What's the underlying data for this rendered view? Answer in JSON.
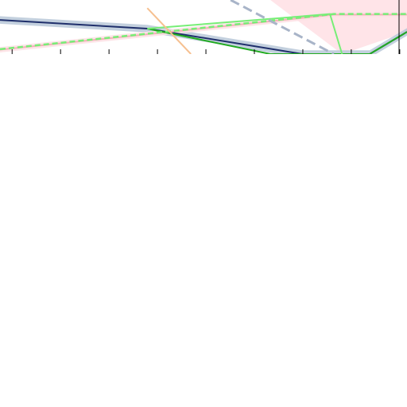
{
  "chart_data": {
    "type": "line",
    "xlim": [
      -0.25,
      8.15
    ],
    "ylim": [
      0,
      10
    ],
    "xticks": [
      0,
      1,
      2,
      3,
      4,
      5,
      6,
      7,
      8
    ],
    "areas": [
      {
        "color": "#ffe4e8",
        "x": [
          5.33,
          6.81,
          8.15
        ],
        "upper": [
          10,
          10,
          10
        ],
        "lower": [
          10,
          0,
          4.1
        ]
      }
    ],
    "series": [
      {
        "color": "#1f2f6b",
        "width": 2,
        "x": [
          -0.25,
          2.79,
          5.99,
          7.38,
          8.15
        ],
        "values": [
          6.3,
          4.7,
          0,
          0,
          4.1
        ],
        "band_color": "#b8c8d8",
        "lower": [
          5.6,
          4.0,
          -0.7,
          -0.7,
          3.4
        ],
        "upper": [
          7.0,
          5.4,
          0.7,
          0.7,
          4.8
        ]
      },
      {
        "color": "#f4b0b8",
        "width": 2,
        "x": [
          -0.25,
          6.64,
          8.15
        ],
        "values": [
          0.8,
          7.3,
          7.3
        ],
        "band_color": "#fde0e4",
        "lower": [
          0.3,
          6.8,
          6.8
        ],
        "upper": [
          1.3,
          7.8,
          7.8
        ]
      },
      {
        "color": "#22aa22",
        "width": 2,
        "x": [
          2.79,
          5.33,
          7.38,
          8.15
        ],
        "values": [
          4.7,
          0,
          0,
          4.1
        ]
      },
      {
        "color": "#77ee77",
        "width": 2,
        "x": [
          2.79,
          6.56,
          6.81
        ],
        "values": [
          4.7,
          7.4,
          0
        ]
      },
      {
        "color": "#77ee77",
        "width": 2.5,
        "dash": "7 4",
        "x": [
          -0.25,
          6.64,
          8.15
        ],
        "values": [
          0.9,
          7.4,
          7.4
        ]
      },
      {
        "color": "#a8b4c8",
        "width": 3,
        "dash": "12 6",
        "x": [
          4.51,
          6.64
        ],
        "values": [
          10,
          0
        ]
      },
      {
        "color": "#f6c090",
        "width": 2,
        "x": [
          2.79,
          3.69
        ],
        "values": [
          8.5,
          0
        ]
      }
    ]
  }
}
